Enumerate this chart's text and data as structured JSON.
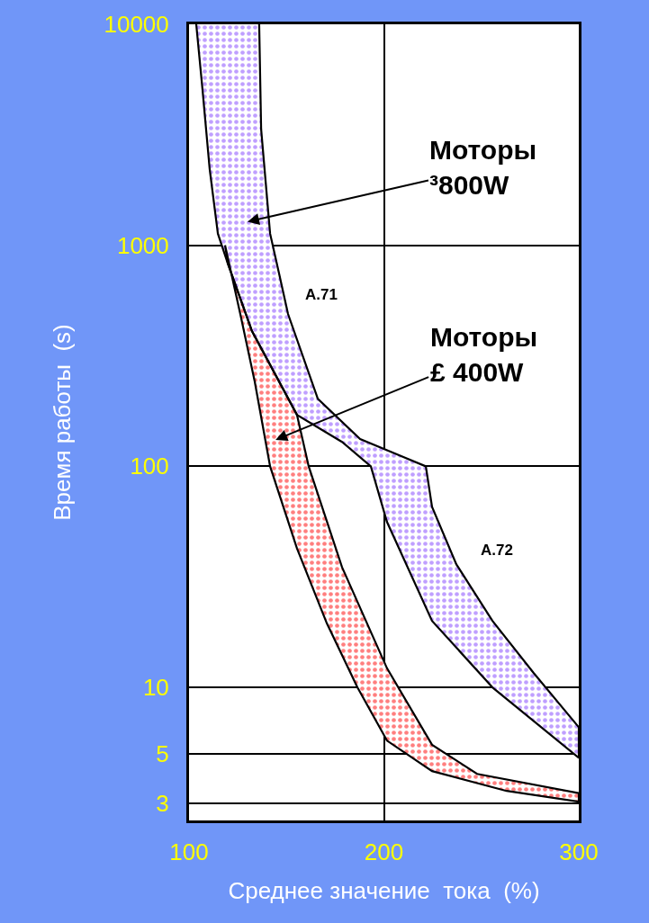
{
  "chart_data": {
    "type": "area",
    "xlabel": "Среднее значение  тока  (%)",
    "ylabel": "Время работы  (s)",
    "xlim": [
      100,
      300
    ],
    "xticks": [
      100,
      200,
      300
    ],
    "ylim": [
      2.5,
      10000
    ],
    "yticks": [
      3,
      5,
      10,
      100,
      1000,
      10000
    ],
    "log": "y",
    "grid": true,
    "series": [
      {
        "color": "#8040ff",
        "x": [
          103.7,
          106.9,
          110.6,
          114.8,
          119.9,
          132.3,
          155.4,
          178.5,
          193.3,
          201.6,
          224.7,
          255.7,
          300,
          300,
          276.9,
          255.7,
          237.2,
          224.7,
          221.5,
          187.8,
          166.1,
          150.8,
          146.2,
          141.6,
          137,
          136
        ],
        "values": [
          10000,
          5090,
          2210,
          1130,
          828,
          409,
          171,
          129,
          100,
          56,
          20,
          10,
          4.8,
          6.6,
          11.6,
          20,
          36,
          65.5,
          100,
          133,
          202,
          489,
          745,
          1130,
          3350,
          10000
        ]
      },
      {
        "color": "#ff0000",
        "x": [
          118.5,
          126.3,
          133.7,
          141.6,
          155.4,
          170.7,
          186.4,
          201.6,
          224.7,
          263,
          300,
          300,
          247.8,
          224.7,
          201.6,
          178.5,
          161.4,
          155.4,
          132.3,
          119.9,
          118.5
        ],
        "values": [
          1000,
          489,
          242,
          100,
          42.5,
          19.5,
          10,
          5.74,
          4.18,
          3.4,
          3.04,
          3.32,
          4.06,
          5.5,
          12.2,
          35,
          100,
          171,
          409,
          828,
          1000
        ]
      }
    ],
    "annotations": [
      "A.71",
      "A.72",
      "Моторы\n³800W",
      "Моторы\n£ 400W"
    ]
  }
}
